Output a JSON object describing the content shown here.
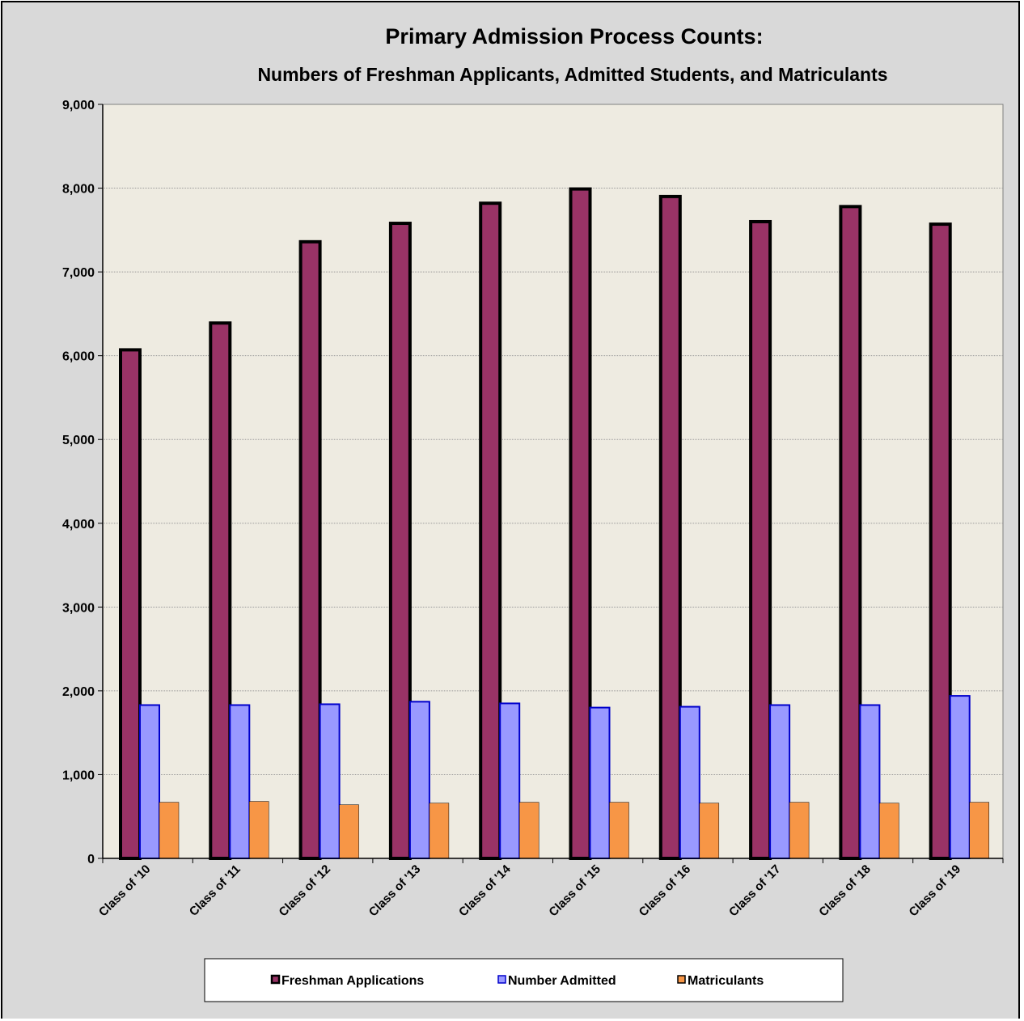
{
  "chart_data": {
    "type": "bar",
    "title": "Primary Admission Process Counts:",
    "subtitle": "Numbers of Freshman Applicants, Admitted Students, and Matriculants",
    "xlabel": "",
    "ylabel": "",
    "ylim": [
      0,
      9000
    ],
    "yticks": [
      "0",
      "1,000",
      "2,000",
      "3,000",
      "4,000",
      "5,000",
      "6,000",
      "7,000",
      "8,000",
      "9,000"
    ],
    "grid": true,
    "legend_position": "bottom",
    "categories": [
      "Class of '10",
      "Class of '11",
      "Class of '12",
      "Class of '13",
      "Class of '14",
      "Class of '15",
      "Class of '16",
      "Class of '17",
      "Class of '18",
      "Class of '19"
    ],
    "series": [
      {
        "name": "Freshman Applications",
        "color": "#993366",
        "values": [
          6070,
          6390,
          7360,
          7580,
          7820,
          7990,
          7900,
          7600,
          7780,
          7570
        ]
      },
      {
        "name": "Number Admitted",
        "color": "#9999ff",
        "values": [
          1830,
          1830,
          1840,
          1870,
          1850,
          1800,
          1810,
          1830,
          1830,
          1940
        ]
      },
      {
        "name": "Matriculants",
        "color": "#f79646",
        "values": [
          670,
          680,
          640,
          660,
          670,
          670,
          660,
          670,
          660,
          670
        ]
      }
    ],
    "plot_background": "#eeebe1"
  }
}
